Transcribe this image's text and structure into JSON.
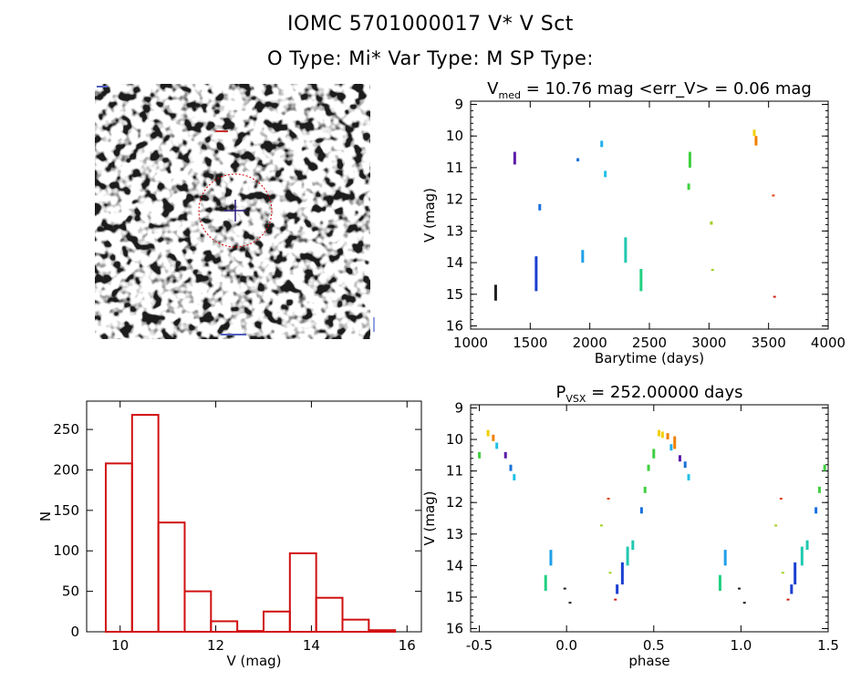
{
  "header": {
    "title": "IOMC 5701000017     V* V Sct",
    "subtitle": "O Type: Mi*   Var Type: M   SP Type:"
  },
  "colors": {
    "axis": "#000000",
    "histogram": "#d01010",
    "circle": "#cc0000",
    "cross": "#2a1a7a"
  },
  "chart_data": [
    {
      "type": "scatter",
      "title": "V_med = 10.76 mag <err_V> = 0.06 mag",
      "title_parts": {
        "v": "V",
        "sub": "med",
        "rest": " = 10.76 mag <err_V> = 0.06 mag"
      },
      "xlabel": "Barytime (days)",
      "ylabel": "V (mag)",
      "xlim": [
        1000,
        4000
      ],
      "ylim": [
        16.1,
        8.9
      ],
      "y_inverted": true,
      "xticks": [
        1000,
        1500,
        2000,
        2500,
        3000,
        3500,
        4000
      ],
      "yticks": [
        9,
        10,
        11,
        12,
        13,
        14,
        15,
        16
      ],
      "groups": [
        {
          "x": 1210,
          "y": [
            14.7,
            15.2
          ],
          "color": "#202020"
        },
        {
          "x": 1370,
          "y": [
            10.5,
            10.9
          ],
          "color": "#5a1aa8"
        },
        {
          "x": 1550,
          "y": [
            13.8,
            14.9
          ],
          "color": "#1a3fd0"
        },
        {
          "x": 1580,
          "y": [
            12.15,
            12.35
          ],
          "color": "#1a6fe0"
        },
        {
          "x": 1900,
          "y": [
            10.7,
            10.8
          ],
          "color": "#1a70d8"
        },
        {
          "x": 1940,
          "y": [
            13.6,
            14.0
          ],
          "color": "#20a0e8"
        },
        {
          "x": 2100,
          "y": [
            10.15,
            10.35
          ],
          "color": "#20b0e8"
        },
        {
          "x": 2130,
          "y": [
            11.1,
            11.3
          ],
          "color": "#20c0e8"
        },
        {
          "x": 2300,
          "y": [
            13.2,
            14.0
          ],
          "color": "#20c8b0"
        },
        {
          "x": 2430,
          "y": [
            14.2,
            14.9
          ],
          "color": "#20d080"
        },
        {
          "x": 2840,
          "y": [
            10.5,
            11.0
          ],
          "color": "#40d040"
        },
        {
          "x": 2830,
          "y": [
            11.5,
            11.7
          ],
          "color": "#40d040"
        },
        {
          "x": 3020,
          "y": [
            12.7,
            12.8
          ],
          "color": "#a0d020"
        },
        {
          "x": 3030,
          "y": [
            14.2,
            14.25
          ],
          "color": "#a0d020"
        },
        {
          "x": 3380,
          "y": [
            9.8,
            10.0
          ],
          "color": "#f0d000"
        },
        {
          "x": 3395,
          "y": [
            10.0,
            10.3
          ],
          "color": "#f08000"
        },
        {
          "x": 3540,
          "y": [
            11.85,
            11.9
          ],
          "color": "#e04010"
        },
        {
          "x": 3550,
          "y": [
            15.05,
            15.1
          ],
          "color": "#d02010"
        }
      ]
    },
    {
      "type": "bar",
      "title": "",
      "xlabel": "V (mag)",
      "ylabel": "N",
      "xlim": [
        9.3,
        16.3
      ],
      "ylim": [
        0,
        285
      ],
      "xticks": [
        10,
        12,
        14,
        16
      ],
      "yticks": [
        0,
        50,
        100,
        150,
        200,
        250
      ],
      "bin_edges": [
        9.7,
        10.25,
        10.8,
        11.35,
        11.9,
        12.45,
        13.0,
        13.55,
        14.1,
        14.65,
        15.2,
        15.75
      ],
      "values": [
        208,
        268,
        135,
        50,
        13,
        1,
        25,
        97,
        42,
        15,
        2
      ]
    },
    {
      "type": "scatter",
      "title": "P_VSX = 252.00000 days",
      "title_parts": {
        "v": "P",
        "sub": "VSX",
        "rest": " = 252.00000 days"
      },
      "xlabel": "phase",
      "ylabel": "V (mag)",
      "xlim": [
        -0.55,
        1.5
      ],
      "ylim": [
        16.1,
        8.9
      ],
      "y_inverted": true,
      "xticks": [
        -0.5,
        0.0,
        0.5,
        1.0,
        1.5
      ],
      "yticks": [
        9,
        10,
        11,
        12,
        13,
        14,
        15,
        16
      ],
      "groups": [
        {
          "x": -0.5,
          "y": [
            10.4,
            10.6
          ],
          "color": "#40d040"
        },
        {
          "x": -0.45,
          "y": [
            9.7,
            9.9
          ],
          "color": "#f0d000"
        },
        {
          "x": -0.42,
          "y": [
            9.85,
            10.05
          ],
          "color": "#f08000"
        },
        {
          "x": -0.4,
          "y": [
            10.1,
            10.3
          ],
          "color": "#20c0e8"
        },
        {
          "x": -0.35,
          "y": [
            10.4,
            10.6
          ],
          "color": "#5a1aa8"
        },
        {
          "x": -0.32,
          "y": [
            10.8,
            11.0
          ],
          "color": "#1a70d8"
        },
        {
          "x": -0.3,
          "y": [
            11.1,
            11.3
          ],
          "color": "#20c0e8"
        },
        {
          "x": -0.12,
          "y": [
            14.3,
            14.8
          ],
          "color": "#20d080"
        },
        {
          "x": -0.09,
          "y": [
            13.5,
            14.0
          ],
          "color": "#20a0e8"
        },
        {
          "x": -0.01,
          "y": [
            14.7,
            14.75
          ],
          "color": "#202020"
        },
        {
          "x": 0.02,
          "y": [
            15.15,
            15.2
          ],
          "color": "#202020"
        },
        {
          "x": 0.2,
          "y": [
            12.7,
            12.75
          ],
          "color": "#a0d020"
        },
        {
          "x": 0.24,
          "y": [
            11.85,
            11.9
          ],
          "color": "#e04010"
        },
        {
          "x": 0.25,
          "y": [
            14.2,
            14.25
          ],
          "color": "#a0d020"
        },
        {
          "x": 0.28,
          "y": [
            15.05,
            15.1
          ],
          "color": "#d02010"
        },
        {
          "x": 0.29,
          "y": [
            14.6,
            14.9
          ],
          "color": "#1a3fd0"
        },
        {
          "x": 0.32,
          "y": [
            13.9,
            14.6
          ],
          "color": "#1a3fd0"
        },
        {
          "x": 0.35,
          "y": [
            13.4,
            14.0
          ],
          "color": "#20c8b0"
        },
        {
          "x": 0.38,
          "y": [
            13.2,
            13.5
          ],
          "color": "#20c8b0"
        },
        {
          "x": 0.43,
          "y": [
            12.15,
            12.35
          ],
          "color": "#1a6fe0"
        },
        {
          "x": 0.45,
          "y": [
            11.5,
            11.7
          ],
          "color": "#40d040"
        },
        {
          "x": 0.47,
          "y": [
            10.8,
            11.0
          ],
          "color": "#40d040"
        },
        {
          "x": 0.5,
          "y": [
            10.3,
            10.6
          ],
          "color": "#40d040"
        },
        {
          "x": 0.53,
          "y": [
            9.7,
            9.9
          ],
          "color": "#f0d000"
        },
        {
          "x": 0.55,
          "y": [
            9.75,
            9.95
          ],
          "color": "#f0d000"
        },
        {
          "x": 0.58,
          "y": [
            9.8,
            10.0
          ],
          "color": "#f08000"
        },
        {
          "x": 0.6,
          "y": [
            10.15,
            10.35
          ],
          "color": "#20b0e8"
        },
        {
          "x": 0.62,
          "y": [
            9.9,
            10.3
          ],
          "color": "#f08000"
        },
        {
          "x": 0.65,
          "y": [
            10.5,
            10.7
          ],
          "color": "#5a1aa8"
        },
        {
          "x": 0.68,
          "y": [
            10.7,
            10.9
          ],
          "color": "#1a70d8"
        },
        {
          "x": 0.7,
          "y": [
            11.1,
            11.3
          ],
          "color": "#20c0e8"
        },
        {
          "x": 0.88,
          "y": [
            14.3,
            14.8
          ],
          "color": "#20d080"
        },
        {
          "x": 0.91,
          "y": [
            13.5,
            14.0
          ],
          "color": "#20a0e8"
        },
        {
          "x": 0.99,
          "y": [
            14.7,
            14.75
          ],
          "color": "#202020"
        },
        {
          "x": 1.02,
          "y": [
            15.15,
            15.2
          ],
          "color": "#202020"
        },
        {
          "x": 1.2,
          "y": [
            12.7,
            12.75
          ],
          "color": "#a0d020"
        },
        {
          "x": 1.23,
          "y": [
            11.85,
            11.9
          ],
          "color": "#e04010"
        },
        {
          "x": 1.24,
          "y": [
            14.2,
            14.25
          ],
          "color": "#a0d020"
        },
        {
          "x": 1.27,
          "y": [
            15.05,
            15.1
          ],
          "color": "#d02010"
        },
        {
          "x": 1.29,
          "y": [
            14.6,
            14.9
          ],
          "color": "#1a3fd0"
        },
        {
          "x": 1.31,
          "y": [
            13.9,
            14.6
          ],
          "color": "#1a3fd0"
        },
        {
          "x": 1.35,
          "y": [
            13.4,
            14.0
          ],
          "color": "#20c8b0"
        },
        {
          "x": 1.38,
          "y": [
            13.2,
            13.5
          ],
          "color": "#20c8b0"
        },
        {
          "x": 1.43,
          "y": [
            12.15,
            12.35
          ],
          "color": "#1a6fe0"
        },
        {
          "x": 1.45,
          "y": [
            11.5,
            11.7
          ],
          "color": "#40d040"
        },
        {
          "x": 1.48,
          "y": [
            10.8,
            11.0
          ],
          "color": "#40d040"
        }
      ]
    }
  ]
}
